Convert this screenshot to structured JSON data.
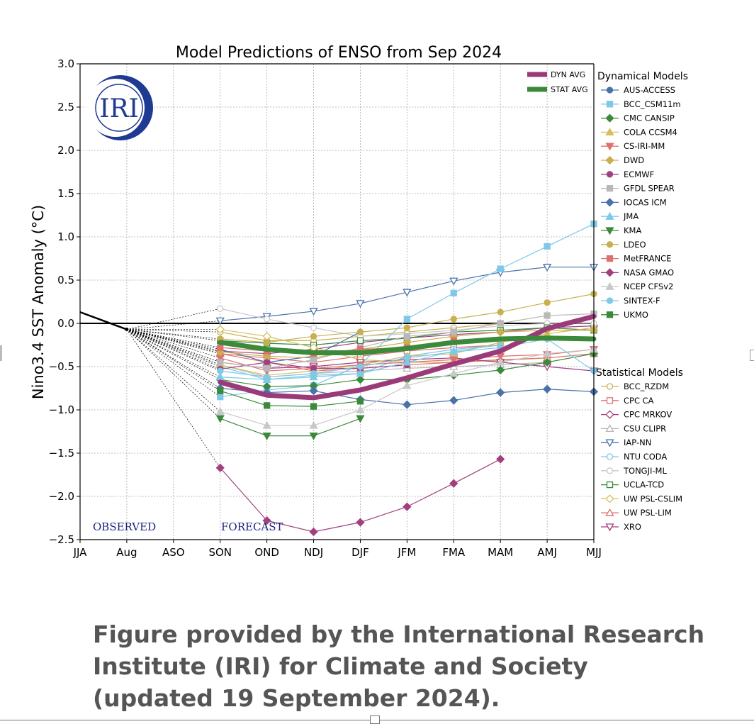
{
  "chart_data": {
    "type": "line",
    "title": "Model Predictions of ENSO from Sep 2024",
    "ylabel": "Nino3.4 SST Anomaly (°C)",
    "xlabel": "",
    "categories": [
      "JJA",
      "Aug",
      "ASO",
      "SON",
      "OND",
      "NDJ",
      "DJF",
      "JFM",
      "FMA",
      "MAM",
      "AMJ",
      "MJJ"
    ],
    "ylim": [
      -2.5,
      3.0
    ],
    "yticks": [
      -2.5,
      -2.0,
      -1.5,
      -1.0,
      -0.5,
      0.0,
      0.5,
      1.0,
      1.5,
      2.0,
      2.5,
      3.0
    ],
    "grid": true,
    "observed": {
      "x": [
        "JJA",
        "Aug"
      ],
      "values": [
        0.13,
        -0.07
      ]
    },
    "annotations": {
      "observed": "OBSERVED",
      "forecast": "FORECAST"
    },
    "legend_groups": {
      "dynamical": "Dynamical Models",
      "statistical": "Statistical Models"
    },
    "averages": [
      {
        "name": "DYN AVG",
        "color": "#9b3a78",
        "values": [
          null,
          null,
          null,
          -0.68,
          -0.83,
          -0.86,
          -0.77,
          -0.63,
          -0.47,
          -0.32,
          -0.06,
          0.08
        ]
      },
      {
        "name": "STAT AVG",
        "color": "#3a8a3a",
        "values": [
          null,
          null,
          null,
          -0.22,
          -0.3,
          -0.34,
          -0.34,
          -0.29,
          -0.22,
          -0.18,
          -0.17,
          -0.18
        ]
      }
    ],
    "dynamical_models": [
      {
        "name": "AUS-ACCESS",
        "color": "#4a72a8",
        "marker": "circle",
        "filled": true,
        "values": [
          null,
          null,
          null,
          -0.3,
          -0.45,
          -0.38,
          -0.1,
          null,
          null,
          null,
          null,
          null
        ]
      },
      {
        "name": "BCC_CSM11m",
        "color": "#7ec8e8",
        "marker": "square",
        "filled": true,
        "values": [
          null,
          null,
          null,
          -0.85,
          -0.77,
          -0.72,
          -0.48,
          0.05,
          0.35,
          0.63,
          0.89,
          1.15
        ]
      },
      {
        "name": "CMC CANSIP",
        "color": "#3a8a3a",
        "marker": "diamond",
        "filled": true,
        "values": [
          null,
          null,
          null,
          -0.65,
          -0.73,
          -0.72,
          -0.65,
          -0.65,
          -0.6,
          -0.54,
          -0.45,
          -0.35
        ]
      },
      {
        "name": "COLA CCSM4",
        "color": "#d4c060",
        "marker": "triangle-up",
        "filled": true,
        "values": [
          null,
          null,
          null,
          -0.48,
          -0.6,
          -0.55,
          -0.48,
          -0.38,
          -0.35,
          -0.22,
          -0.12,
          -0.05
        ]
      },
      {
        "name": "CS-IRI-MM",
        "color": "#e07070",
        "marker": "triangle-down",
        "filled": true,
        "values": [
          null,
          null,
          null,
          -0.4,
          -0.55,
          -0.52,
          -0.48,
          -0.45,
          -0.42,
          -0.38,
          -0.36,
          -0.3
        ]
      },
      {
        "name": "DWD",
        "color": "#c8b050",
        "marker": "diamond",
        "filled": true,
        "values": [
          null,
          null,
          null,
          -0.33,
          -0.38,
          -0.4,
          -0.3,
          -0.22,
          -0.15,
          -0.1,
          -0.08,
          -0.08
        ]
      },
      {
        "name": "ECMWF",
        "color": "#a04080",
        "marker": "circle",
        "filled": true,
        "values": [
          null,
          null,
          null,
          -0.53,
          -0.45,
          -0.52,
          -0.52,
          -0.48,
          null,
          null,
          null,
          null
        ]
      },
      {
        "name": "GFDL SPEAR",
        "color": "#b8b8b8",
        "marker": "square",
        "filled": true,
        "values": [
          null,
          null,
          null,
          -0.45,
          -0.52,
          -0.42,
          -0.28,
          -0.15,
          -0.1,
          0.0,
          0.09,
          0.11
        ]
      },
      {
        "name": "IOCAS ICM",
        "color": "#4a72a8",
        "marker": "diamond",
        "filled": true,
        "values": [
          null,
          null,
          null,
          -0.75,
          -0.8,
          -0.78,
          -0.88,
          -0.94,
          -0.89,
          -0.8,
          -0.76,
          -0.79
        ]
      },
      {
        "name": "JMA",
        "color": "#7ec8e8",
        "marker": "triangle-up",
        "filled": true,
        "values": [
          null,
          null,
          null,
          -0.62,
          -0.65,
          -0.62,
          -0.58,
          -0.45,
          -0.32,
          -0.25,
          null,
          null
        ]
      },
      {
        "name": "KMA",
        "color": "#3a8a3a",
        "marker": "triangle-down",
        "filled": true,
        "values": [
          null,
          null,
          null,
          -1.1,
          -1.3,
          -1.3,
          -1.1,
          null,
          null,
          null,
          null,
          null
        ]
      },
      {
        "name": "LDEO",
        "color": "#c8b050",
        "marker": "circle",
        "filled": true,
        "values": [
          null,
          null,
          null,
          -0.18,
          -0.22,
          -0.15,
          -0.1,
          -0.05,
          0.05,
          0.13,
          0.24,
          0.34
        ]
      },
      {
        "name": "MetFRANCE",
        "color": "#e07070",
        "marker": "square",
        "filled": true,
        "values": [
          null,
          null,
          null,
          -0.28,
          -0.32,
          -0.35,
          -0.3,
          -0.28,
          -0.2,
          null,
          null,
          null
        ]
      },
      {
        "name": "NASA GMAO",
        "color": "#a04080",
        "marker": "diamond",
        "filled": true,
        "values": [
          null,
          null,
          null,
          -1.67,
          -2.28,
          -2.41,
          -2.3,
          -2.12,
          -1.85,
          -1.57,
          null,
          null
        ]
      },
      {
        "name": "NCEP CFSv2",
        "color": "#c8c8c8",
        "marker": "triangle-up",
        "filled": true,
        "values": [
          null,
          null,
          null,
          -1.02,
          -1.18,
          -1.18,
          -1.0,
          -0.72,
          -0.58,
          -0.45,
          -0.35,
          -0.3
        ]
      },
      {
        "name": "SINTEX-F",
        "color": "#7ec8e8",
        "marker": "circle",
        "filled": true,
        "values": [
          null,
          null,
          null,
          -0.55,
          -0.62,
          -0.58,
          -0.5,
          -0.4,
          -0.33,
          -0.28,
          -0.18,
          -0.55
        ]
      },
      {
        "name": "UKMO",
        "color": "#3a8a3a",
        "marker": "square",
        "filled": true,
        "values": [
          null,
          null,
          null,
          -0.78,
          -0.95,
          -0.96,
          -0.9,
          null,
          null,
          null,
          null,
          null
        ]
      }
    ],
    "statistical_models": [
      {
        "name": "BCC_RZDM",
        "color": "#c8b050",
        "marker": "circle",
        "filled": false,
        "values": [
          null,
          null,
          null,
          -0.1,
          -0.2,
          -0.2,
          -0.15,
          -0.1,
          -0.05,
          0.0,
          null,
          null
        ]
      },
      {
        "name": "CPC CA",
        "color": "#e07070",
        "marker": "square",
        "filled": false,
        "values": [
          null,
          null,
          null,
          -0.35,
          -0.4,
          -0.45,
          -0.38,
          -0.32,
          -0.28,
          -0.25,
          null,
          null
        ]
      },
      {
        "name": "CPC MRKOV",
        "color": "#a04080",
        "marker": "diamond",
        "filled": false,
        "values": [
          null,
          null,
          null,
          -0.32,
          -0.35,
          -0.3,
          -0.22,
          -0.17,
          -0.13,
          -0.1,
          -0.05,
          -0.03
        ]
      },
      {
        "name": "CSU CLIPR",
        "color": "#b8b8b8",
        "marker": "triangle-up",
        "filled": false,
        "values": [
          null,
          null,
          null,
          -0.48,
          -0.62,
          -0.58,
          -0.55,
          -0.52,
          -0.5,
          -0.48,
          -0.45,
          null
        ]
      },
      {
        "name": "IAP-NN",
        "color": "#4a72a8",
        "marker": "triangle-down",
        "filled": false,
        "values": [
          null,
          null,
          null,
          0.03,
          0.08,
          0.14,
          0.23,
          0.36,
          0.49,
          0.59,
          0.65,
          0.65
        ]
      },
      {
        "name": "NTU CODA",
        "color": "#7ec8e8",
        "marker": "circle",
        "filled": false,
        "values": [
          null,
          null,
          null,
          -0.5,
          -0.65,
          -0.6,
          -0.58,
          -0.38,
          -0.3,
          -0.25,
          null,
          null
        ]
      },
      {
        "name": "TONGJI-ML",
        "color": "#c8c8c8",
        "marker": "circle",
        "filled": false,
        "values": [
          null,
          null,
          null,
          0.17,
          0.05,
          -0.05,
          -0.15,
          -0.12,
          -0.08,
          -0.03,
          0.0,
          0.0
        ]
      },
      {
        "name": "UCLA-TCD",
        "color": "#3a8a3a",
        "marker": "square",
        "filled": false,
        "values": [
          null,
          null,
          null,
          -0.2,
          -0.23,
          -0.25,
          -0.2,
          -0.17,
          -0.1,
          -0.08,
          -0.05,
          -0.08
        ]
      },
      {
        "name": "UW PSL-CSLIM",
        "color": "#d4c060",
        "marker": "diamond",
        "filled": false,
        "values": [
          null,
          null,
          null,
          -0.07,
          -0.15,
          -0.28,
          -0.42,
          -0.45,
          -0.45,
          -0.43,
          -0.4,
          -0.35
        ]
      },
      {
        "name": "UW PSL-LIM",
        "color": "#e07070",
        "marker": "triangle-up",
        "filled": false,
        "values": [
          null,
          null,
          null,
          -0.35,
          -0.45,
          -0.55,
          -0.52,
          -0.48,
          -0.45,
          -0.42,
          -0.4,
          -0.35
        ]
      },
      {
        "name": "XRO",
        "color": "#a04080",
        "marker": "triangle-down",
        "filled": false,
        "values": [
          null,
          null,
          null,
          -0.45,
          -0.52,
          -0.5,
          -0.45,
          -0.42,
          -0.4,
          -0.45,
          -0.5,
          -0.55
        ]
      }
    ]
  },
  "logo": {
    "text": "IRI",
    "color": "#1f3a93"
  },
  "caption": {
    "line1": "Figure provided by the International Research",
    "line2": "Institute (IRI) for Climate and Society",
    "line3": "(updated 19 September 2024)."
  }
}
